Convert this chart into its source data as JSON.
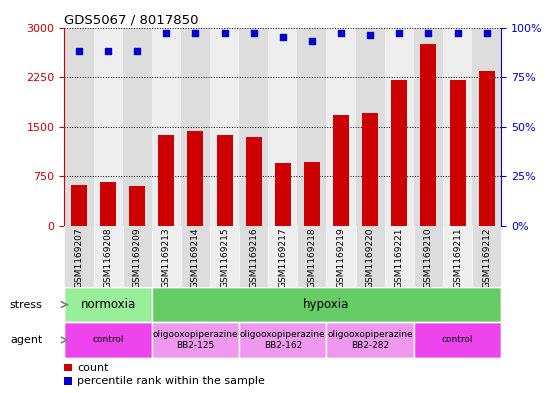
{
  "title": "GDS5067 / 8017850",
  "samples": [
    "GSM1169207",
    "GSM1169208",
    "GSM1169209",
    "GSM1169213",
    "GSM1169214",
    "GSM1169215",
    "GSM1169216",
    "GSM1169217",
    "GSM1169218",
    "GSM1169219",
    "GSM1169220",
    "GSM1169221",
    "GSM1169210",
    "GSM1169211",
    "GSM1169212"
  ],
  "counts": [
    620,
    660,
    610,
    1380,
    1430,
    1380,
    1340,
    950,
    960,
    1680,
    1710,
    2200,
    2750,
    2200,
    2350
  ],
  "percentiles": [
    88,
    88,
    88,
    97,
    97,
    97,
    97,
    95,
    93,
    97,
    96,
    97,
    97,
    97,
    97
  ],
  "bar_color": "#cc0000",
  "dot_color": "#0000cc",
  "ylim_left": [
    0,
    3000
  ],
  "ylim_right": [
    0,
    100
  ],
  "yticks_left": [
    0,
    750,
    1500,
    2250,
    3000
  ],
  "yticks_right": [
    0,
    25,
    50,
    75,
    100
  ],
  "ytick_labels_right": [
    "0%",
    "25%",
    "50%",
    "75%",
    "100%"
  ],
  "stress_groups": [
    {
      "label": "normoxia",
      "start": 0,
      "end": 3,
      "color": "#99ee99"
    },
    {
      "label": "hypoxia",
      "start": 3,
      "end": 15,
      "color": "#66cc66"
    }
  ],
  "agent_groups": [
    {
      "label": "control",
      "start": 0,
      "end": 3,
      "color": "#ee44ee"
    },
    {
      "label": "oligooxopiperazine\nBB2-125",
      "start": 3,
      "end": 6,
      "color": "#ee99ee"
    },
    {
      "label": "oligooxopiperazine\nBB2-162",
      "start": 6,
      "end": 9,
      "color": "#ee99ee"
    },
    {
      "label": "oligooxopiperazine\nBB2-282",
      "start": 9,
      "end": 12,
      "color": "#ee99ee"
    },
    {
      "label": "control",
      "start": 12,
      "end": 15,
      "color": "#ee44ee"
    }
  ],
  "stress_label": "stress",
  "agent_label": "agent",
  "legend_count_label": "count",
  "legend_pct_label": "percentile rank within the sample",
  "col_bg_color": "#dddddd",
  "bar_width": 0.55
}
